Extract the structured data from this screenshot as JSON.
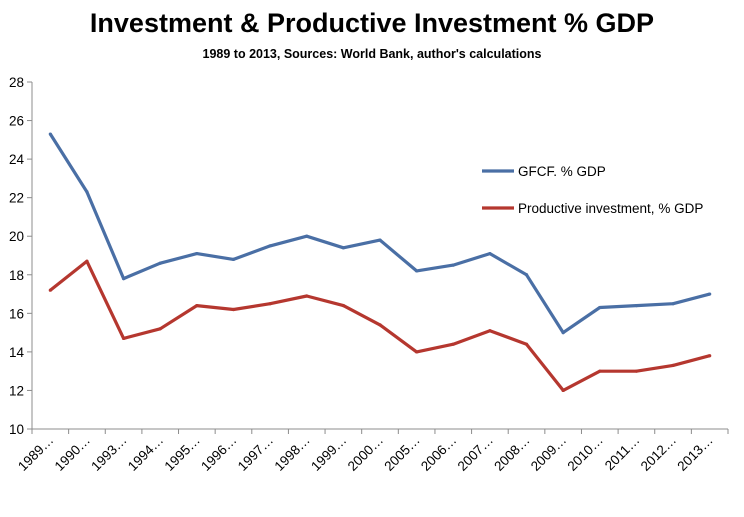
{
  "chart_data": {
    "type": "line",
    "title": "Investment & Productive Investment % GDP",
    "subtitle": "1989 to 2013, Sources: World Bank, author's calculations",
    "xlabel": "",
    "ylabel": "",
    "categories": [
      "1989…",
      "1990…",
      "1993…",
      "1994…",
      "1995…",
      "1996…",
      "1997…",
      "1998…",
      "1999…",
      "2000…",
      "2005…",
      "2006…",
      "2007…",
      "2008…",
      "2009…",
      "2010…",
      "2011…",
      "2012…",
      "2013…"
    ],
    "ylim": [
      10,
      28
    ],
    "yticks": [
      10,
      12,
      14,
      16,
      18,
      20,
      22,
      24,
      26,
      28
    ],
    "grid": false,
    "legend_position": "right",
    "series": [
      {
        "name": "GFCF. % GDP",
        "color": "#4a6fa5",
        "values": [
          25.3,
          22.3,
          17.8,
          18.6,
          19.1,
          18.8,
          19.5,
          20.0,
          19.4,
          19.8,
          18.2,
          18.5,
          19.1,
          18.0,
          15.0,
          16.3,
          16.4,
          16.5,
          17.0
        ]
      },
      {
        "name": "Productive investment, % GDP",
        "color": "#b5372f",
        "values": [
          17.2,
          18.7,
          14.7,
          15.2,
          16.4,
          16.2,
          16.5,
          16.9,
          16.4,
          15.4,
          14.0,
          14.4,
          15.1,
          14.4,
          12.0,
          13.0,
          13.0,
          13.3,
          13.8
        ]
      }
    ]
  }
}
